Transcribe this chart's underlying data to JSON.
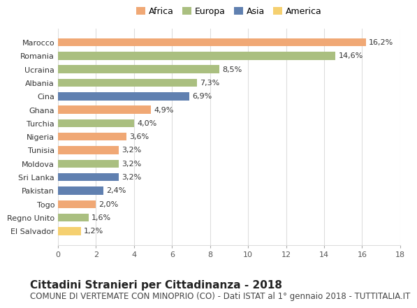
{
  "categories": [
    "Marocco",
    "Romania",
    "Ucraina",
    "Albania",
    "Cina",
    "Ghana",
    "Turchia",
    "Nigeria",
    "Tunisia",
    "Moldova",
    "Sri Lanka",
    "Pakistan",
    "Togo",
    "Regno Unito",
    "El Salvador"
  ],
  "values": [
    16.2,
    14.6,
    8.5,
    7.3,
    6.9,
    4.9,
    4.0,
    3.6,
    3.2,
    3.2,
    3.2,
    2.4,
    2.0,
    1.6,
    1.2
  ],
  "labels": [
    "16,2%",
    "14,6%",
    "8,5%",
    "7,3%",
    "6,9%",
    "4,9%",
    "4,0%",
    "3,6%",
    "3,2%",
    "3,2%",
    "3,2%",
    "2,4%",
    "2,0%",
    "1,6%",
    "1,2%"
  ],
  "continents": [
    "Africa",
    "Europa",
    "Europa",
    "Europa",
    "Asia",
    "Africa",
    "Europa",
    "Africa",
    "Africa",
    "Europa",
    "Asia",
    "Asia",
    "Africa",
    "Europa",
    "America"
  ],
  "continent_colors": {
    "Africa": "#F0A875",
    "Europa": "#AABF80",
    "Asia": "#6080B0",
    "America": "#F5D070"
  },
  "legend_order": [
    "Africa",
    "Europa",
    "Asia",
    "America"
  ],
  "xlim": [
    0,
    18
  ],
  "xticks": [
    0,
    2,
    4,
    6,
    8,
    10,
    12,
    14,
    16,
    18
  ],
  "title": "Cittadini Stranieri per Cittadinanza - 2018",
  "subtitle": "COMUNE DI VERTEMATE CON MINOPRIO (CO) - Dati ISTAT al 1° gennaio 2018 - TUTTITALIA.IT",
  "background_color": "#ffffff",
  "grid_color": "#dddddd",
  "bar_height": 0.6,
  "title_fontsize": 11,
  "subtitle_fontsize": 8.5,
  "label_fontsize": 8,
  "tick_fontsize": 8,
  "legend_fontsize": 9
}
